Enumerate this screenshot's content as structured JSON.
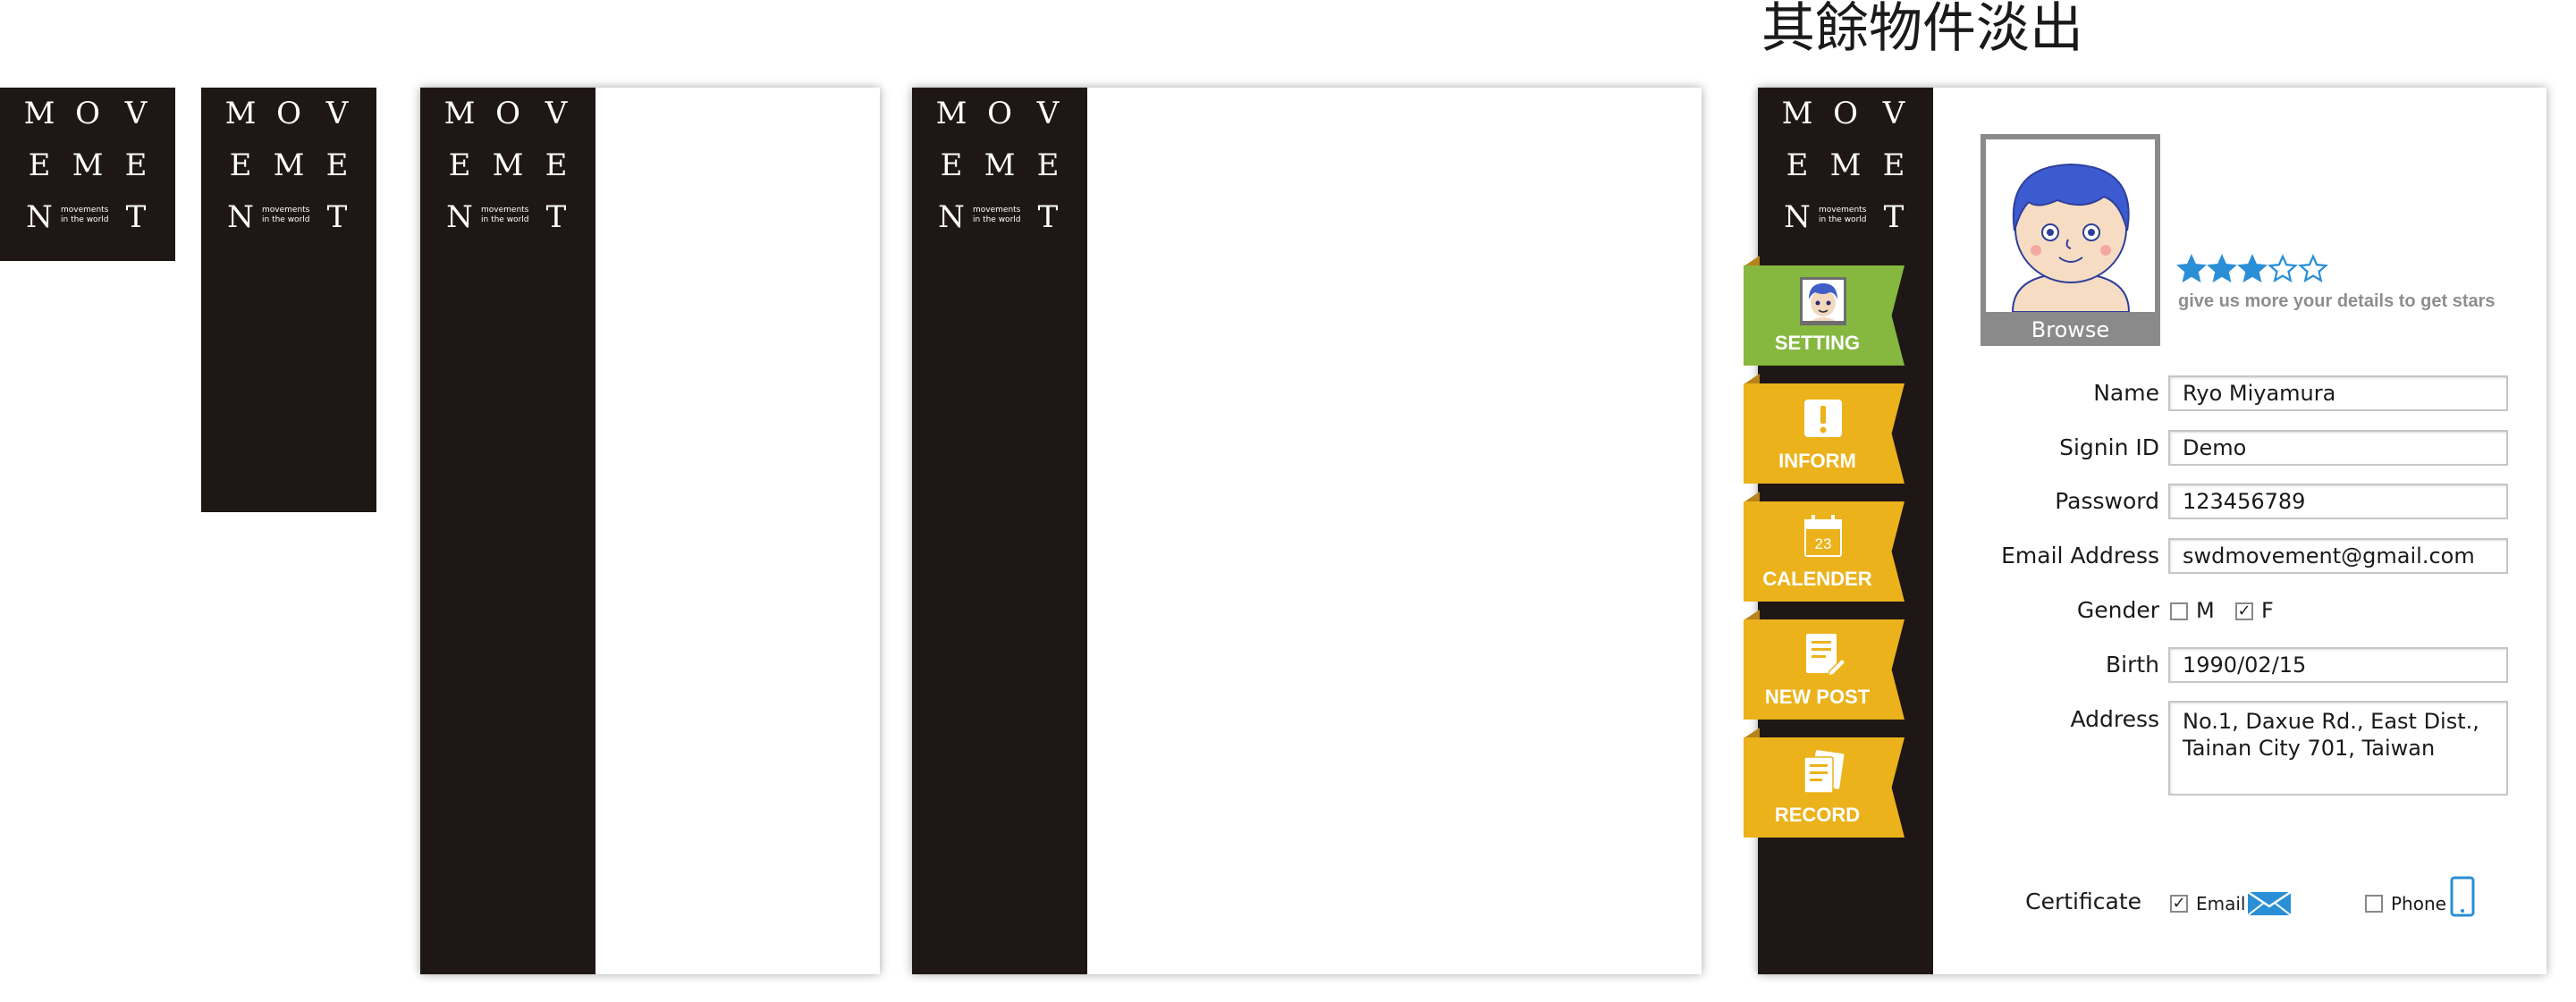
{
  "heading": "其餘物件淡出",
  "logo": {
    "letters": [
      "M",
      "O",
      "V",
      "E",
      "M",
      "E",
      "N",
      "T"
    ],
    "tagline_1": "movements",
    "tagline_2": "in the world"
  },
  "menu": [
    {
      "label": "SETTING",
      "icon": "avatar-icon",
      "color": "#86b83f"
    },
    {
      "label": "INFORM",
      "icon": "exclamation-icon",
      "color": "#ebb21b"
    },
    {
      "label": "CALENDER",
      "icon": "calendar-icon",
      "color": "#ebb21b",
      "calendar_day": "23"
    },
    {
      "label": "NEW POST",
      "icon": "new-post-icon",
      "color": "#ebb21b"
    },
    {
      "label": "RECORD",
      "icon": "record-icon",
      "color": "#ebb21b"
    }
  ],
  "profile": {
    "browse_label": "Browse",
    "rating": 3,
    "rating_max": 5,
    "hint": "give us more your details to get stars"
  },
  "form": {
    "name_label": "Name",
    "name_value": "Ryo Miyamura",
    "signin_label": "Signin ID",
    "signin_value": "Demo",
    "password_label": "Password",
    "password_value": "123456789",
    "email_label": "Email Address",
    "email_value": "swdmovement@gmail.com",
    "gender_label": "Gender",
    "gender_m": "M",
    "gender_f": "F",
    "gender_m_checked": false,
    "gender_f_checked": true,
    "birth_label": "Birth",
    "birth_value": "1990/02/15",
    "address_label": "Address",
    "address_value": "No.1, Daxue Rd., East Dist.,\nTainan City 701, Taiwan",
    "certificate_label": "Certificate",
    "cert_email": "Email",
    "cert_email_checked": true,
    "cert_phone": "Phone",
    "cert_phone_checked": false
  },
  "colors": {
    "sidebar": "#1f1716",
    "accent_blue": "#2a8fd6",
    "ribbon_green": "#86b83f",
    "ribbon_yellow": "#ebb21b"
  }
}
